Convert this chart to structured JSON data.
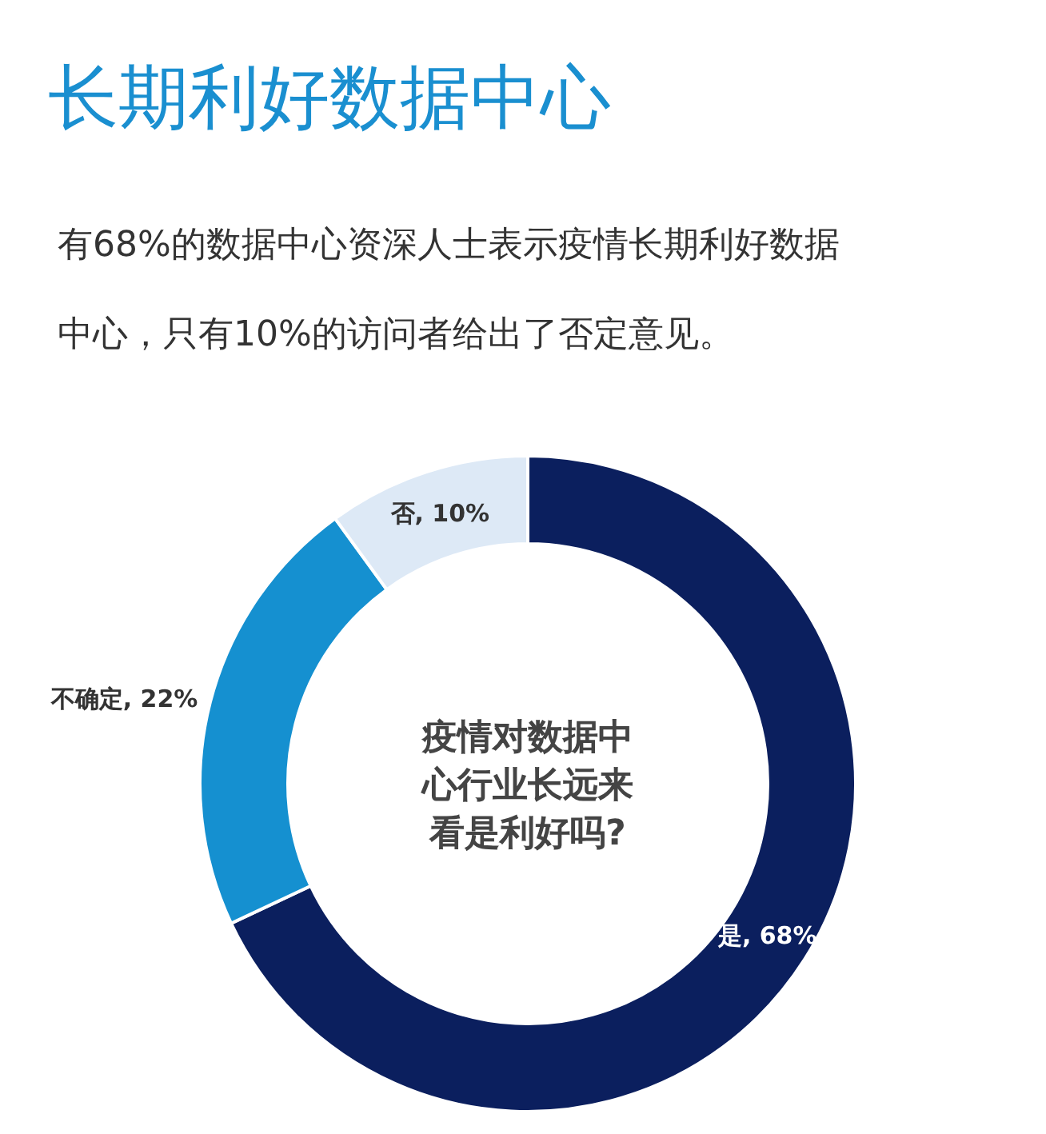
{
  "chart_data": {
    "type": "donut",
    "title": "长期利好数据中心",
    "subtitle": "有68%的数据中心资深人士表示疫情长期利好数据中心，只有10%的访问者给出了否定意见。",
    "categories": [
      "是",
      "不确定",
      "否"
    ],
    "values": [
      68,
      22,
      10
    ],
    "value_labels": [
      "68%",
      "22%",
      "10%"
    ],
    "colors": [
      "#0b1f5e",
      "#1590d0",
      "#dde9f6"
    ],
    "annotations": [
      "疫情对数据中心行业长远来看是利好吗?"
    ]
  }
}
